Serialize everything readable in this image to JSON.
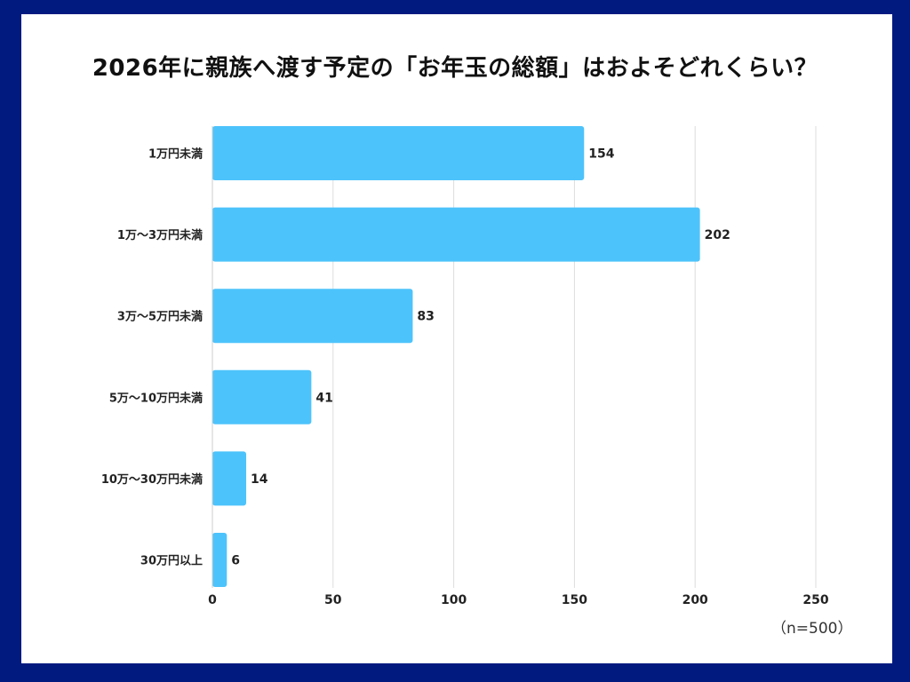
{
  "title": "2026年に親族へ渡す予定の「お年玉の総額」はおよそどれくらい？",
  "note": "（n=500）",
  "colors": {
    "bar": "#4dc3fb",
    "background": "#001a80",
    "grid": "#dddddd"
  },
  "chart_data": {
    "type": "bar",
    "orientation": "horizontal",
    "categories": [
      "1万円未満",
      "1万〜3万円未満",
      "3万〜5万円未満",
      "5万〜10万円未満",
      "10万〜30万円未満",
      "30万円以上"
    ],
    "values": [
      154,
      202,
      83,
      41,
      14,
      6
    ],
    "xlim": [
      0,
      250
    ],
    "xticks": [
      0,
      50,
      100,
      150,
      200,
      250
    ],
    "grid": true,
    "title": "2026年に親族へ渡す予定の「お年玉の総額」はおよそどれくらい？"
  }
}
